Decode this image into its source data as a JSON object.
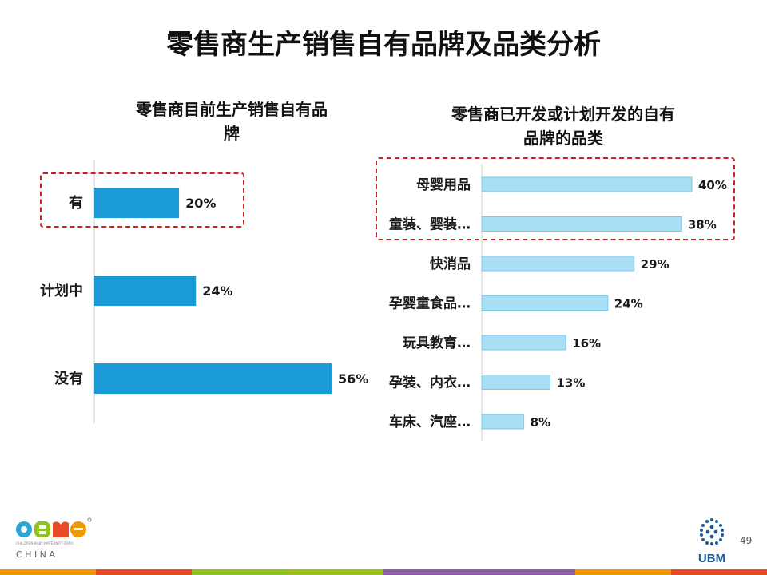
{
  "page": {
    "title": "零售商生产销售自有品牌及品类分析",
    "page_number": "49"
  },
  "logos": {
    "cbme": {
      "word": "CBME",
      "tagline": "CHILDREN·BABY·MATERNITY·EXPO",
      "region": "C H I N A"
    },
    "ubm": {
      "word": "UBM"
    }
  },
  "colors": {
    "left_bar": "#1a9ad6",
    "right_bar": "#a9dff5",
    "right_bar_stroke": "#7cc8ea",
    "highlight": "#d11f1f",
    "stripe": [
      "#f39800",
      "#e94b27",
      "#8fc31f",
      "#9ec11a",
      "#8d5aa4",
      "#8d5aa4",
      "#f39800",
      "#e94b27"
    ]
  },
  "chart_data": [
    {
      "type": "bar",
      "orientation": "horizontal",
      "title_lines": [
        "零售商目前生产销售自有品",
        "牌"
      ],
      "categories": [
        "有",
        "计划中",
        "没有"
      ],
      "values": [
        20,
        24,
        56
      ],
      "labels": [
        "20%",
        "24%",
        "56%"
      ],
      "unit": "%",
      "xlim": [
        0,
        56
      ],
      "highlighted_categories": [
        "有"
      ]
    },
    {
      "type": "bar",
      "orientation": "horizontal",
      "title_lines": [
        "零售商已开发或计划开发的自有",
        "品牌的品类"
      ],
      "categories": [
        "母婴用品",
        "童装、婴装…",
        "快消品",
        "孕婴童食品…",
        "玩具教育…",
        "孕装、内衣…",
        "车床、汽座…"
      ],
      "values": [
        40,
        38,
        29,
        24,
        16,
        13,
        8
      ],
      "labels": [
        "40%",
        "38%",
        "29%",
        "24%",
        "16%",
        "13%",
        "8%"
      ],
      "unit": "%",
      "xlim": [
        0,
        40
      ],
      "highlighted_categories": [
        "母婴用品",
        "童装、婴装…"
      ]
    }
  ]
}
